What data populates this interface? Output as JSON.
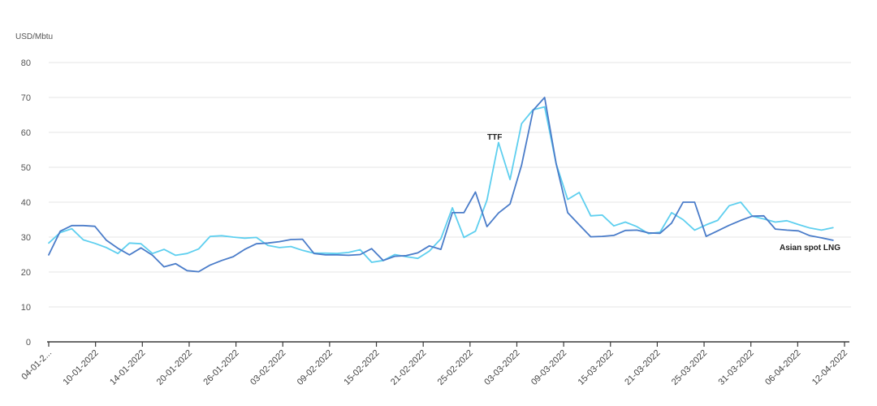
{
  "chart_data": {
    "type": "line",
    "title": "",
    "xlabel": "",
    "ylabel": "USD/Mbtu",
    "ylim": [
      0,
      80
    ],
    "yticks": [
      0,
      10,
      20,
      30,
      40,
      50,
      60,
      70,
      80
    ],
    "grid": true,
    "x_tick_labels": [
      "04-01-2...",
      "10-01-2022",
      "14-01-2022",
      "20-01-2022",
      "26-01-2022",
      "03-02-2022",
      "09-02-2022",
      "15-02-2022",
      "21-02-2022",
      "25-02-2022",
      "03-03-2022",
      "09-03-2022",
      "15-03-2022",
      "21-03-2022",
      "25-03-2022",
      "31-03-2022",
      "06-04-2022",
      "12-04-2022"
    ],
    "n_points": 70,
    "series": [
      {
        "name": "TTF",
        "color": "#5ecfef",
        "values": [
          28.3,
          31.3,
          32.4,
          29.2,
          28.2,
          27.0,
          25.3,
          28.3,
          28.1,
          25.3,
          26.5,
          24.8,
          25.3,
          26.6,
          30.2,
          30.4,
          30.0,
          29.7,
          29.9,
          27.6,
          27.0,
          27.3,
          26.2,
          25.4,
          25.4,
          25.3,
          25.6,
          26.4,
          22.8,
          23.3,
          25.0,
          24.4,
          23.9,
          26.0,
          29.5,
          38.4,
          29.9,
          31.7,
          40.6,
          57.1,
          46.5,
          62.5,
          66.5,
          67.3,
          51.0,
          40.8,
          42.8,
          36.1,
          36.3,
          33.2,
          34.3,
          33.0,
          31.0,
          31.4,
          37.0,
          35.0,
          32.0,
          33.5,
          34.8,
          39.0,
          40.0,
          36.0,
          35.2,
          34.3,
          34.7,
          33.6,
          32.6,
          32.0,
          32.7,
          null
        ]
      },
      {
        "name": "Asian spot LNG",
        "color": "#4a7cc9",
        "values": [
          24.9,
          31.7,
          33.3,
          33.3,
          33.1,
          29.1,
          26.8,
          24.9,
          26.9,
          24.8,
          21.5,
          22.4,
          20.4,
          20.1,
          22.0,
          23.3,
          24.4,
          26.5,
          28.1,
          28.3,
          28.7,
          29.3,
          29.4,
          25.3,
          24.9,
          24.9,
          24.8,
          25.0,
          26.7,
          23.3,
          24.5,
          24.7,
          25.5,
          27.5,
          26.5,
          37.0,
          37.0,
          42.9,
          33.0,
          36.9,
          39.5,
          50.6,
          66.3,
          70.0,
          51.0,
          37.0,
          33.5,
          30.1,
          30.2,
          30.5,
          31.9,
          32.0,
          31.2,
          31.1,
          34.0,
          40.0,
          40.0,
          30.2,
          31.8,
          33.4,
          34.8,
          36.0,
          36.1,
          32.3,
          32.0,
          31.8,
          30.4,
          29.8,
          29.1,
          null
        ]
      }
    ],
    "annotations": [
      {
        "text": "TTF",
        "series": "TTF",
        "near_index": 39
      },
      {
        "text": "Asian spot LNG",
        "series": "Asian spot LNG",
        "near_index": 68
      }
    ]
  }
}
